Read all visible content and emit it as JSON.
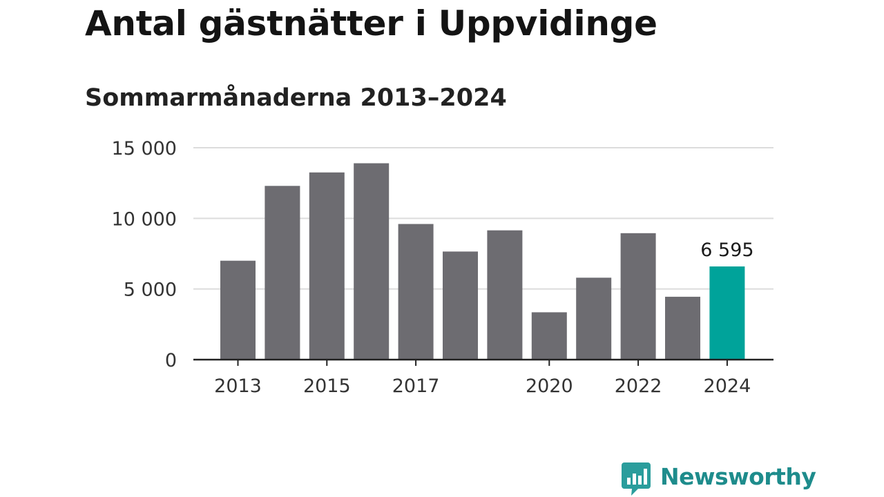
{
  "header": {
    "title": "Antal gästnätter i Uppvidinge",
    "subtitle": "Sommarmånaderna 2013–2024"
  },
  "chart_data": {
    "type": "bar",
    "title": "Antal gästnätter i Uppvidinge",
    "subtitle": "Sommarmånaderna 2013–2024",
    "xlabel": "",
    "ylabel": "",
    "categories": [
      "2013",
      "2014",
      "2015",
      "2016",
      "2017",
      "2018",
      "2019",
      "2020",
      "2021",
      "2022",
      "2023",
      "2024"
    ],
    "values": [
      7000,
      12300,
      13250,
      13900,
      9600,
      7650,
      9150,
      3350,
      5800,
      8950,
      4450,
      6595
    ],
    "x_tick_labels": [
      "2013",
      "2015",
      "2017",
      "2020",
      "2022",
      "2024"
    ],
    "y_ticks": [
      0,
      5000,
      10000,
      15000
    ],
    "y_tick_labels": [
      "0",
      "5 000",
      "10 000",
      "15 000"
    ],
    "ylim": [
      0,
      15000
    ],
    "grid": true,
    "highlight_index": 11,
    "highlight_label": "6 595",
    "colors": {
      "bar": "#6d6c71",
      "highlight": "#00a39a",
      "grid": "#dcdcdc",
      "axis": "#222222",
      "tick_text": "#333333"
    }
  },
  "brand": {
    "name": "Newsworthy",
    "icon": "newsworthy-logo-icon",
    "color": "#1e8c8c"
  }
}
